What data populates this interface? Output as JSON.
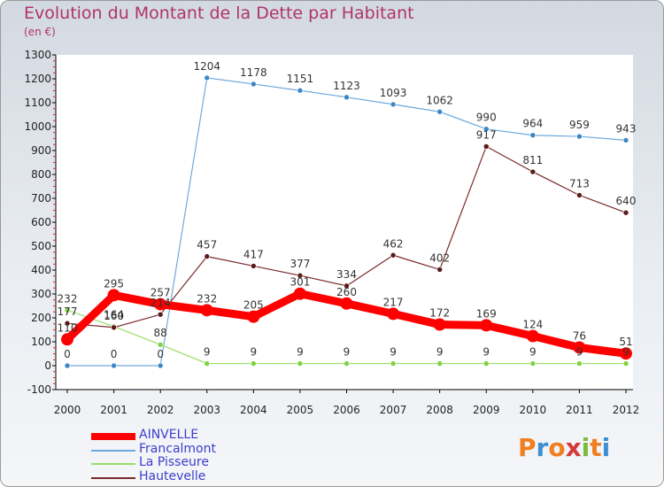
{
  "header": {
    "title": "Evolution du Montant de la Dette par Habitant",
    "unit": "(en €)"
  },
  "logo": {
    "letters": [
      "P",
      "r",
      "o",
      "x",
      "i",
      "t",
      "i"
    ],
    "colors": [
      "#f07e22",
      "#3b8fd4",
      "#f07e22",
      "#d63a3a",
      "#7cbb3b",
      "#f07e22",
      "#3b8fd4"
    ]
  },
  "chart_data": {
    "type": "line",
    "x": [
      "2000",
      "2001",
      "2002",
      "2003",
      "2004",
      "2005",
      "2006",
      "2007",
      "2008",
      "2009",
      "2010",
      "2011",
      "2012"
    ],
    "ylim": [
      -100,
      1300
    ],
    "yticks": [
      -100,
      0,
      100,
      200,
      300,
      400,
      500,
      600,
      700,
      800,
      900,
      1000,
      1100,
      1200,
      1300
    ],
    "grid": false,
    "legend_position": "bottom-left",
    "series": [
      {
        "name": "AINVELLE",
        "color": "#ff0000",
        "values": [
          110,
          295,
          257,
          232,
          205,
          301,
          260,
          217,
          172,
          169,
          124,
          76,
          51
        ]
      },
      {
        "name": "Francalmont",
        "color": "#6fa8dc",
        "values": [
          0,
          0,
          0,
          1204,
          1178,
          1151,
          1123,
          1093,
          1062,
          990,
          964,
          959,
          943
        ]
      },
      {
        "name": "La Pisseure",
        "color": "#99dd66",
        "values": [
          232,
          164,
          88,
          9,
          9,
          9,
          9,
          9,
          9,
          9,
          9,
          9,
          9
        ]
      },
      {
        "name": "Hautevelle",
        "color": "#7a2a2a",
        "values": [
          177,
          160,
          214,
          457,
          417,
          377,
          334,
          462,
          402,
          917,
          811,
          713,
          640
        ]
      }
    ]
  }
}
